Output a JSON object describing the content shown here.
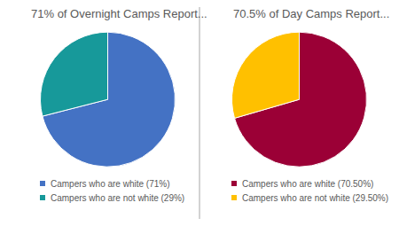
{
  "chart_data": [
    {
      "type": "pie",
      "title": "71% of Overnight Camps Report...",
      "categories": [
        "Campers who are white (71%)",
        "Campers who are not white (29%)"
      ],
      "values": [
        71,
        29
      ],
      "colors": [
        "#4472c4",
        "#17999a"
      ],
      "legend": "bottom"
    },
    {
      "type": "pie",
      "title": "70.5% of Day Camps Report...",
      "categories": [
        "Campers who are white (70.50%)",
        "Campers who are not white (29.50%)"
      ],
      "values": [
        70.5,
        29.5
      ],
      "colors": [
        "#9b0036",
        "#ffc000"
      ],
      "legend": "bottom"
    }
  ]
}
